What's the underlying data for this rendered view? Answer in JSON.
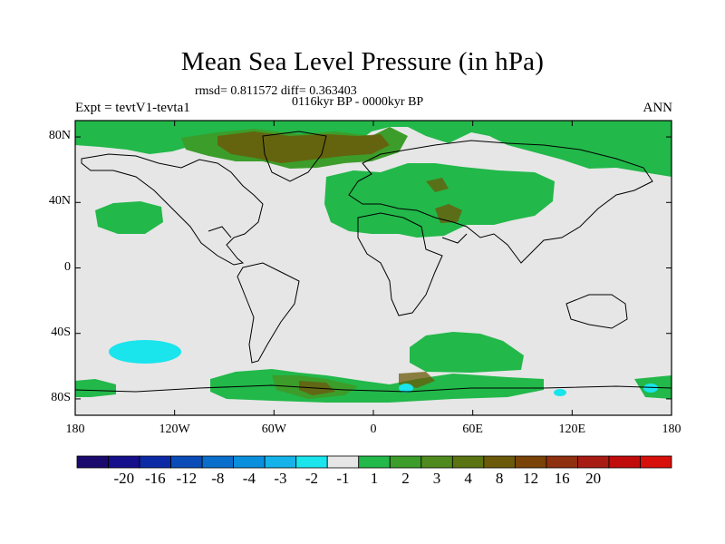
{
  "title": "Mean Sea Level Pressure (in hPa)",
  "rmsd_line": "rmsd= 0.811572 diff= 0.363403",
  "period_line": "0116kyr BP - 0000kyr BP",
  "expt_label": "Expt = tevtV1-tevta1",
  "season_label": "ANN",
  "map": {
    "lon_range": [
      -180,
      180
    ],
    "lat_range": [
      -90,
      90
    ],
    "lat_labels": [
      "80N",
      "40N",
      "0",
      "40S",
      "80S"
    ],
    "lat_values": [
      80,
      40,
      0,
      -40,
      -80
    ],
    "lon_labels": [
      "180",
      "120W",
      "60W",
      "0",
      "60E",
      "120E",
      "180"
    ],
    "lon_values": [
      -180,
      -120,
      -60,
      0,
      60,
      120,
      180
    ],
    "background_color": "#e6e6e6",
    "coast_color": "#000000"
  },
  "colorbar": {
    "colors": [
      "#1b0a6e",
      "#160f8c",
      "#0d2aa6",
      "#0b4cb8",
      "#0a6fcc",
      "#0a8fdd",
      "#15b3ea",
      "#1ae4ec",
      "#e6e6e6",
      "#22b84a",
      "#3c9d2a",
      "#4f8a1e",
      "#5a7412",
      "#6b5a0a",
      "#7a4308",
      "#8f3010",
      "#a81c14",
      "#c10c0c",
      "#d8100c"
    ],
    "labels": [
      "-20",
      "-16",
      "-12",
      "-8",
      "-4",
      "-3",
      "-2",
      "-1",
      "1",
      "2",
      "3",
      "4",
      "8",
      "12",
      "16",
      "20"
    ]
  }
}
